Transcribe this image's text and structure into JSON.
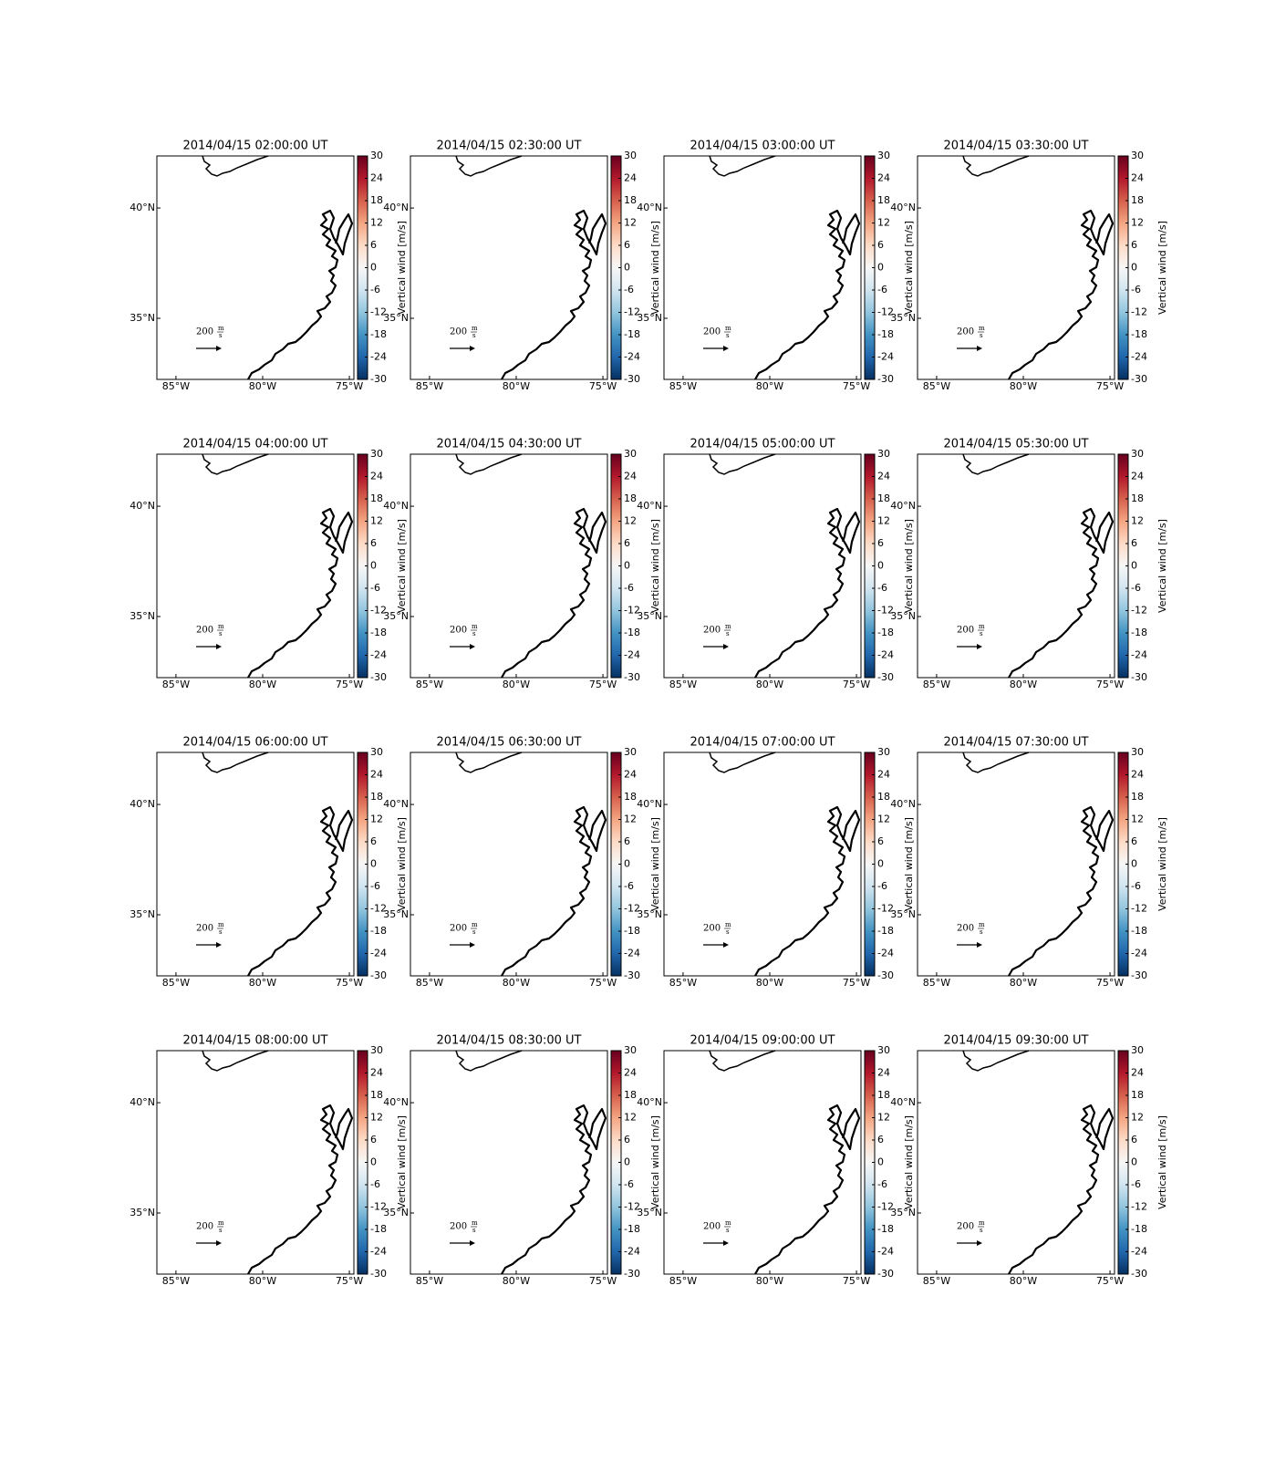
{
  "panels": [
    {
      "title": "2014/04/15 02:00:00 UT"
    },
    {
      "title": "2014/04/15 02:30:00 UT"
    },
    {
      "title": "2014/04/15 03:00:00 UT"
    },
    {
      "title": "2014/04/15 03:30:00 UT"
    },
    {
      "title": "2014/04/15 04:00:00 UT"
    },
    {
      "title": "2014/04/15 04:30:00 UT"
    },
    {
      "title": "2014/04/15 05:00:00 UT"
    },
    {
      "title": "2014/04/15 05:30:00 UT"
    },
    {
      "title": "2014/04/15 06:00:00 UT"
    },
    {
      "title": "2014/04/15 06:30:00 UT"
    },
    {
      "title": "2014/04/15 07:00:00 UT"
    },
    {
      "title": "2014/04/15 07:30:00 UT"
    },
    {
      "title": "2014/04/15 08:00:00 UT"
    },
    {
      "title": "2014/04/15 08:30:00 UT"
    },
    {
      "title": "2014/04/15 09:00:00 UT"
    },
    {
      "title": "2014/04/15 09:30:00 UT"
    }
  ],
  "lon_range": [
    -86.1,
    -74.74
  ],
  "lat_range": [
    32.23,
    42.36
  ],
  "lon_ticks": [
    {
      "value": -85,
      "label": "85°W"
    },
    {
      "value": -80,
      "label": "80°W"
    },
    {
      "value": -75,
      "label": "75°W"
    }
  ],
  "lat_ticks": [
    {
      "value": 40,
      "label": "40°N"
    },
    {
      "value": 35,
      "label": "35°N"
    }
  ],
  "colorbar": {
    "label": "Vertical wind [m/s]",
    "range": [
      -30,
      30
    ],
    "ticks": [
      30,
      24,
      18,
      12,
      6,
      0,
      -6,
      -12,
      -18,
      -24,
      -30
    ]
  },
  "quiver_key": {
    "magnitude": 200,
    "unit_numerator": "m",
    "unit_denominator": "s"
  }
}
